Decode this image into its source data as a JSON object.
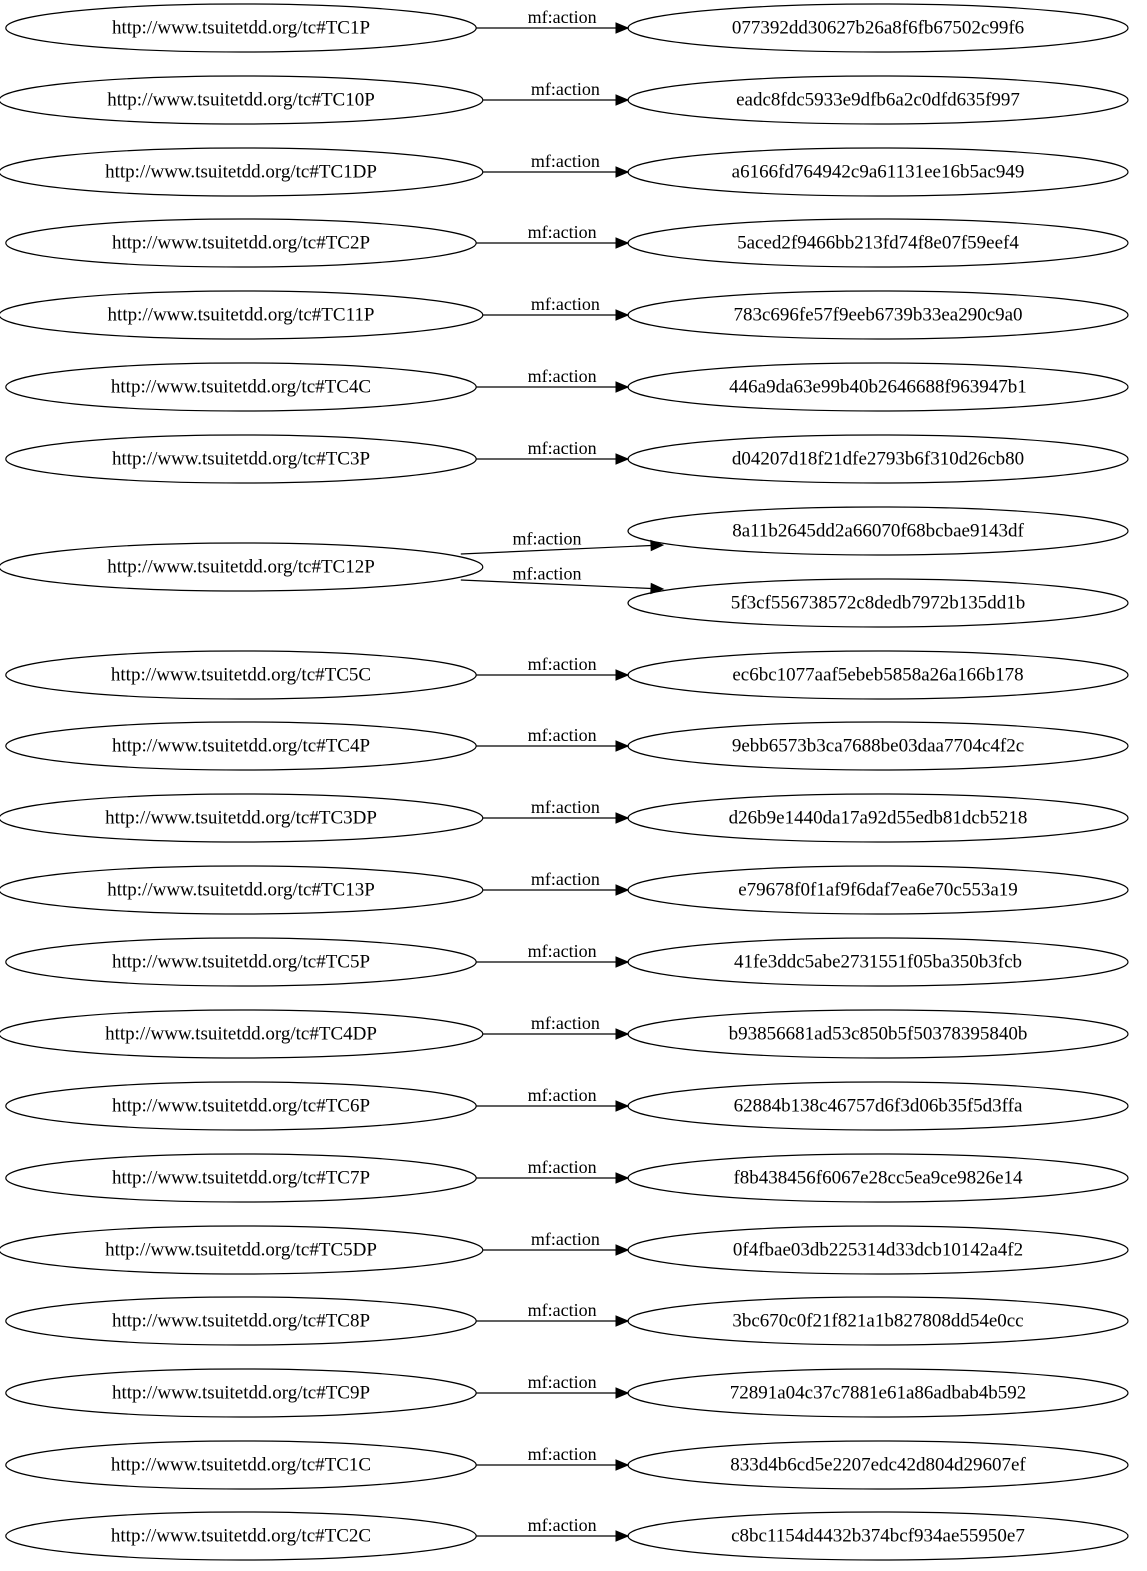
{
  "edge_label": "mf:action",
  "rows": [
    {
      "source": "http://www.tsuitetdd.org/tc#TC1P",
      "targets": [
        "077392dd30627b26a8f6fb67502c99f6"
      ]
    },
    {
      "source": "http://www.tsuitetdd.org/tc#TC10P",
      "targets": [
        "eadc8fdc5933e9dfb6a2c0dfd635f997"
      ]
    },
    {
      "source": "http://www.tsuitetdd.org/tc#TC1DP",
      "targets": [
        "a6166fd764942c9a61131ee16b5ac949"
      ]
    },
    {
      "source": "http://www.tsuitetdd.org/tc#TC2P",
      "targets": [
        "5aced2f9466bb213fd74f8e07f59eef4"
      ]
    },
    {
      "source": "http://www.tsuitetdd.org/tc#TC11P",
      "targets": [
        "783c696fe57f9eeb6739b33ea290c9a0"
      ]
    },
    {
      "source": "http://www.tsuitetdd.org/tc#TC4C",
      "targets": [
        "446a9da63e99b40b2646688f963947b1"
      ]
    },
    {
      "source": "http://www.tsuitetdd.org/tc#TC3P",
      "targets": [
        "d04207d18f21dfe2793b6f310d26cb80"
      ]
    },
    {
      "source": "http://www.tsuitetdd.org/tc#TC12P",
      "targets": [
        "8a11b2645dd2a66070f68bcbae9143df",
        "5f3cf556738572c8dedb7972b135dd1b"
      ]
    },
    {
      "source": "http://www.tsuitetdd.org/tc#TC5C",
      "targets": [
        "ec6bc1077aaf5ebeb5858a26a166b178"
      ]
    },
    {
      "source": "http://www.tsuitetdd.org/tc#TC4P",
      "targets": [
        "9ebb6573b3ca7688be03daa7704c4f2c"
      ]
    },
    {
      "source": "http://www.tsuitetdd.org/tc#TC3DP",
      "targets": [
        "d26b9e1440da17a92d55edb81dcb5218"
      ]
    },
    {
      "source": "http://www.tsuitetdd.org/tc#TC13P",
      "targets": [
        "e79678f0f1af9f6daf7ea6e70c553a19"
      ]
    },
    {
      "source": "http://www.tsuitetdd.org/tc#TC5P",
      "targets": [
        "41fe3ddc5abe2731551f05ba350b3fcb"
      ]
    },
    {
      "source": "http://www.tsuitetdd.org/tc#TC4DP",
      "targets": [
        "b93856681ad53c850b5f50378395840b"
      ]
    },
    {
      "source": "http://www.tsuitetdd.org/tc#TC6P",
      "targets": [
        "62884b138c46757d6f3d06b35f5d3ffa"
      ]
    },
    {
      "source": "http://www.tsuitetdd.org/tc#TC7P",
      "targets": [
        "f8b438456f6067e28cc5ea9ce9826e14"
      ]
    },
    {
      "source": "http://www.tsuitetdd.org/tc#TC5DP",
      "targets": [
        "0f4fbae03db225314d33dcb10142a4f2"
      ]
    },
    {
      "source": "http://www.tsuitetdd.org/tc#TC8P",
      "targets": [
        "3bc670c0f21f821a1b827808dd54e0cc"
      ]
    },
    {
      "source": "http://www.tsuitetdd.org/tc#TC9P",
      "targets": [
        "72891a04c37c7881e61a86adbab4b592"
      ]
    },
    {
      "source": "http://www.tsuitetdd.org/tc#TC1C",
      "targets": [
        "833d4b6cd5e2207edc42d804d29607ef"
      ]
    },
    {
      "source": "http://www.tsuitetdd.org/tc#TC2C",
      "targets": [
        "c8bc1154d4432b374bcf934ae55950e7"
      ]
    }
  ]
}
